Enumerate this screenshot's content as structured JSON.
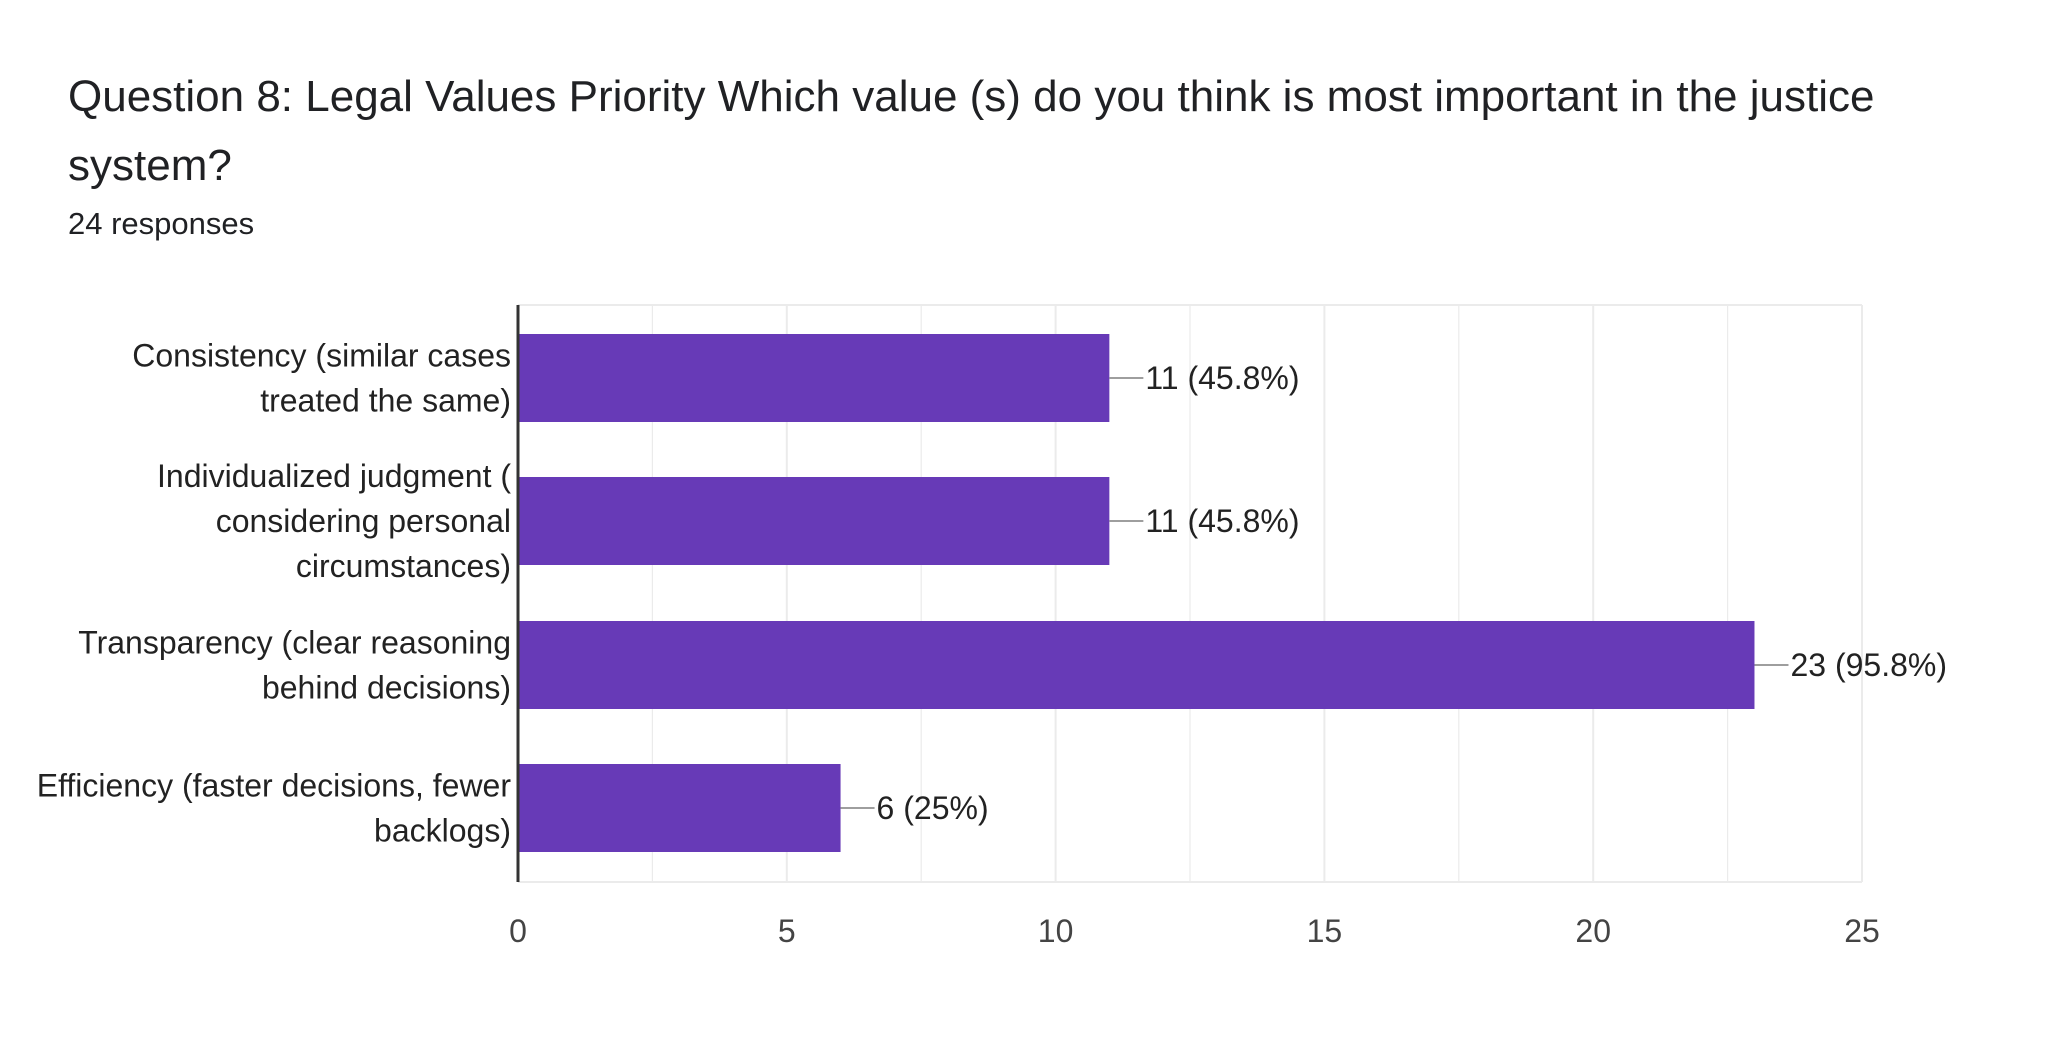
{
  "question": {
    "title": "Question 8: Legal Values Priority Which value (s) do you think is most important in the justice system?",
    "response_count": "24 responses"
  },
  "colors": {
    "bar": "#673ab7",
    "axis": "#333333",
    "grid": "#ebebeb",
    "leader": "#9e9e9e"
  },
  "chart_data": {
    "type": "bar",
    "orientation": "horizontal",
    "categories": [
      [
        "Consistency (similar cases",
        "treated the same)"
      ],
      [
        "Individualized judgment (",
        "considering personal",
        "circumstances)"
      ],
      [
        "Transparency (clear reasoning",
        "behind decisions)"
      ],
      [
        "Efficiency (faster decisions, fewer",
        "backlogs)"
      ]
    ],
    "values": [
      11,
      11,
      23,
      6
    ],
    "data_labels": [
      "11 (45.8%)",
      "11 (45.8%)",
      "23 (95.8%)",
      "6 (25%)"
    ],
    "xlim": [
      0,
      25
    ],
    "x_ticks": [
      0,
      5,
      10,
      15,
      20,
      25
    ],
    "minor_gridlines": [
      2.5,
      7.5,
      12.5,
      17.5,
      22.5
    ],
    "grid": true,
    "title": "",
    "xlabel": "",
    "ylabel": ""
  }
}
